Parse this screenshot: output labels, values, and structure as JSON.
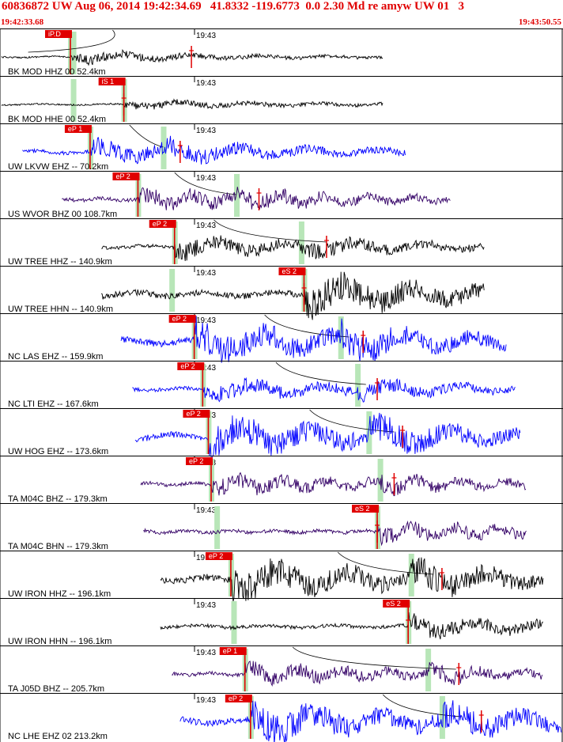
{
  "header": {
    "title": "60836872 UW Aug 06, 2014 19:42:34.69   41.8332 -119.6773  0.0 2.30 Md re amyw UW 01   3",
    "start_time": "19:42:33.68",
    "end_time": "19:43:50.55"
  },
  "colors": {
    "header": "#e00000",
    "pick": "#e00000",
    "window": "#b8e6b8",
    "black": "#000000",
    "blue": "#0000ff",
    "purple": "#330066"
  },
  "minute_label": "19:43",
  "traces": [
    {
      "label": "BK MOD HHZ 00 52.4km",
      "pick": "iP.D",
      "color": "black",
      "amp": "low",
      "start": 0.0,
      "end": 0.68,
      "pickx": 0.125,
      "pick_is_s": false,
      "green": 0.13,
      "red": 0.34,
      "curve": [
        0.2,
        0.05
      ]
    },
    {
      "label": "BK MOD HHE 00 52.4km",
      "pick": "iS 1",
      "color": "black",
      "amp": "low",
      "start": 0.0,
      "end": 0.68,
      "pickx": 0.22,
      "pick_is_s": true,
      "green": 0.13,
      "red": 0.22,
      "curve": null
    },
    {
      "label": "UW LKVW EHZ -- 70.2km",
      "pick": "eP 1",
      "color": "blue",
      "amp": "med",
      "start": 0.04,
      "end": 0.72,
      "pickx": 0.16,
      "pick_is_s": false,
      "green": 0.29,
      "red": 0.32,
      "curve": [
        0.23,
        0.29
      ]
    },
    {
      "label": "US WVOR BHZ 00 108.7km",
      "pick": "eP 2",
      "color": "purple",
      "amp": "med",
      "start": 0.11,
      "end": 0.8,
      "pickx": 0.245,
      "pick_is_s": false,
      "green": 0.42,
      "red": 0.46,
      "curve": [
        0.31,
        0.42
      ]
    },
    {
      "label": "UW TREE HHZ -- 140.9km",
      "pick": "eP 2",
      "color": "black",
      "amp": "med",
      "start": 0.18,
      "end": 0.86,
      "pickx": 0.31,
      "pick_is_s": false,
      "green": 0.535,
      "red": 0.58,
      "curve": [
        0.38,
        0.58
      ]
    },
    {
      "label": "UW TREE HHN -- 140.9km",
      "pick": "eS 2",
      "color": "black",
      "amp": "high",
      "start": 0.18,
      "end": 0.86,
      "pickx": 0.54,
      "pick_is_s": true,
      "green": 0.305,
      "red": 0.54,
      "curve": null
    },
    {
      "label": "NC LAS EHZ -- 159.9km",
      "pick": "eP 2",
      "color": "blue",
      "amp": "high",
      "start": 0.215,
      "end": 0.9,
      "pickx": 0.345,
      "pick_is_s": false,
      "green": 0.605,
      "red": 0.645,
      "curve": [
        0.47,
        0.62
      ]
    },
    {
      "label": "NC LTI EHZ -- 167.6km",
      "pick": "eP 2",
      "color": "blue",
      "amp": "med",
      "start": 0.235,
      "end": 0.915,
      "pickx": 0.36,
      "pick_is_s": false,
      "green": 0.635,
      "red": 0.67,
      "curve": [
        0.49,
        0.65
      ]
    },
    {
      "label": "UW HOG EHZ -- 173.6km",
      "pick": "eP 2",
      "color": "blue",
      "amp": "high",
      "start": 0.24,
      "end": 0.925,
      "pickx": 0.37,
      "pick_is_s": false,
      "green": 0.655,
      "red": 0.715,
      "curve": [
        0.55,
        0.7
      ]
    },
    {
      "label": "TA M04C BHZ -- 179.3km",
      "pick": "eP 2",
      "color": "purple",
      "amp": "med",
      "start": 0.25,
      "end": 0.935,
      "pickx": 0.375,
      "pick_is_s": false,
      "green": 0.675,
      "red": 0.7,
      "curve": null
    },
    {
      "label": "TA M04C BHN -- 179.3km",
      "pick": "eS 2",
      "color": "purple",
      "amp": "med",
      "start": 0.255,
      "end": 0.935,
      "pickx": 0.67,
      "pick_is_s": true,
      "green": 0.385,
      "red": 0.67,
      "curve": null
    },
    {
      "label": "UW IRON HHZ -- 196.1km",
      "pick": "eP 2",
      "color": "black",
      "amp": "high",
      "start": 0.285,
      "end": 0.965,
      "pickx": 0.41,
      "pick_is_s": false,
      "green": 0.73,
      "red": 0.785,
      "curve": [
        0.6,
        0.77
      ]
    },
    {
      "label": "UW IRON HHN -- 196.1km",
      "pick": "eS 2",
      "color": "black",
      "amp": "med",
      "start": 0.285,
      "end": 0.965,
      "pickx": 0.725,
      "pick_is_s": true,
      "green": 0.415,
      "red": 0.725,
      "curve": null
    },
    {
      "label": "TA J05D BHZ -- 205.7km",
      "pick": "eP 1",
      "color": "purple",
      "amp": "med",
      "start": 0.305,
      "end": 0.965,
      "pickx": 0.435,
      "pick_is_s": false,
      "green": 0.76,
      "red": 0.815,
      "curve": [
        0.52,
        0.81
      ]
    },
    {
      "label": "NC LHE EHZ 02 213.2km",
      "pick": "eP 2",
      "color": "blue",
      "amp": "high",
      "start": 0.32,
      "end": 1.0,
      "pickx": 0.445,
      "pick_is_s": false,
      "green": 0.785,
      "red": 0.855,
      "curve": [
        0.68,
        0.82
      ]
    }
  ]
}
